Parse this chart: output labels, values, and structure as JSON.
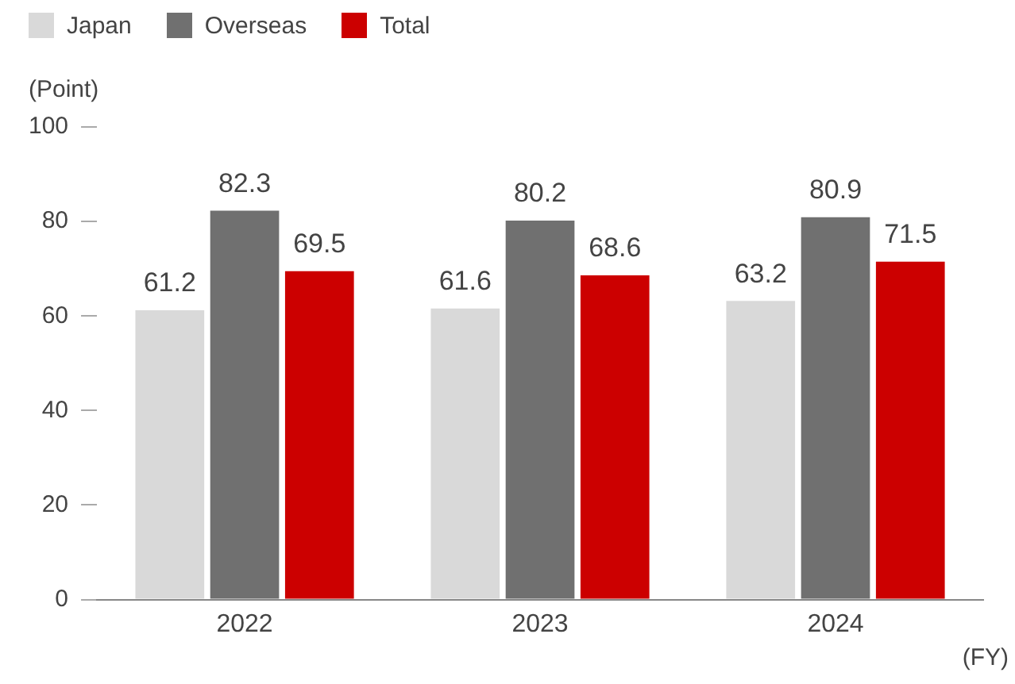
{
  "chart_data": {
    "type": "bar",
    "ylabel": "(Point)",
    "xlabel": "(FY)",
    "categories": [
      "2022",
      "2023",
      "2024"
    ],
    "series": [
      {
        "name": "Japan",
        "color": "#d9d9d9",
        "values": [
          61.2,
          61.6,
          63.2
        ]
      },
      {
        "name": "Overseas",
        "color": "#707070",
        "values": [
          82.3,
          80.2,
          80.9
        ]
      },
      {
        "name": "Total",
        "color": "#cc0000",
        "values": [
          69.5,
          68.6,
          71.5
        ]
      }
    ],
    "ylim": [
      0,
      100
    ],
    "yticks": [
      0,
      20,
      40,
      60,
      80,
      100
    ],
    "grid": false,
    "legend": "top left",
    "data_labels": true
  }
}
